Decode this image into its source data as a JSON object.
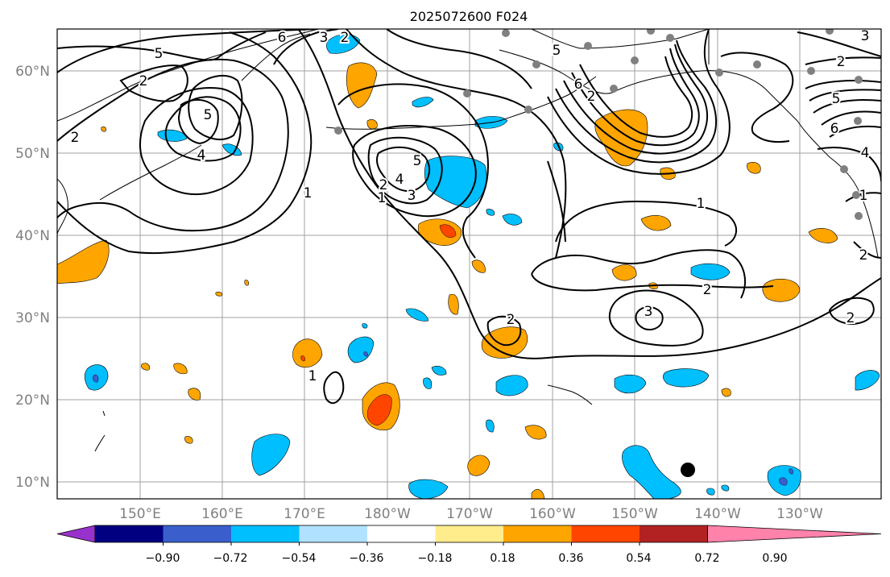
{
  "title": "2025072600 F024",
  "lat_labels": [
    "60°N",
    "50°N",
    "40°N",
    "30°N",
    "20°N",
    "10°N"
  ],
  "lon_labels": [
    "150°E",
    "160°E",
    "170°E",
    "180°W",
    "170°W",
    "160°W",
    "150°W",
    "140°W",
    "130°W"
  ],
  "colorbar": {
    "tick_labels": [
      "−0.90",
      "−0.72",
      "−0.54",
      "−0.36",
      "−0.18",
      "0.18",
      "0.36",
      "0.54",
      "0.72",
      "0.90"
    ],
    "colors": [
      "#9932cc",
      "#000080",
      "#3a5fcd",
      "#00bfff",
      "#b0e2ff",
      "#ffffff",
      "#ffec8b",
      "#ffa500",
      "#ff4500",
      "#b22222",
      "#ff82ab"
    ]
  },
  "contour_labels": [
    "5",
    "6",
    "3",
    "2",
    "2",
    "5",
    "4",
    "1",
    "2",
    "5",
    "4",
    "3",
    "2",
    "1",
    "5",
    "6",
    "1",
    "2",
    "3",
    "2",
    "3",
    "4",
    "6",
    "5",
    "2",
    "1",
    "2",
    "2",
    "2",
    "1"
  ]
}
